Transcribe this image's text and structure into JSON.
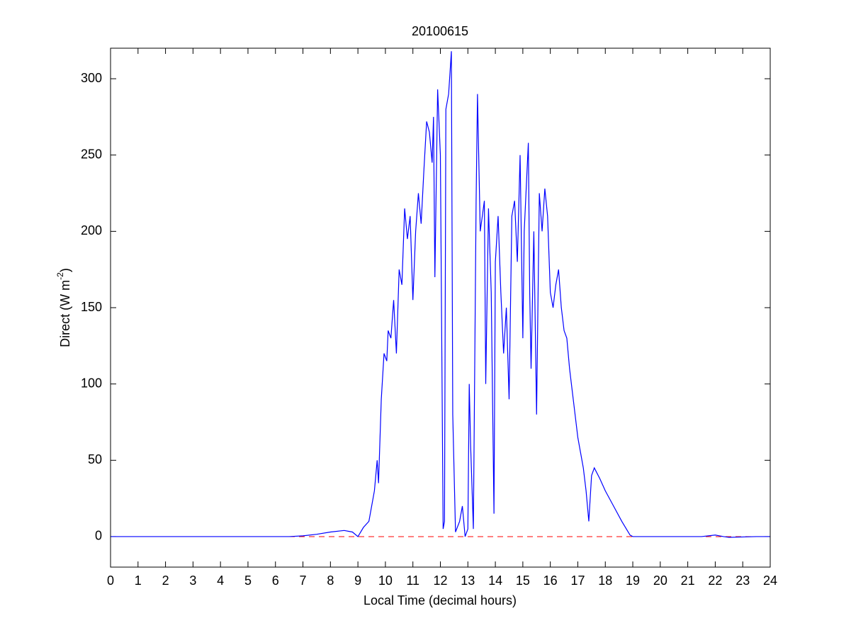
{
  "chart_data": {
    "type": "line",
    "title": "20100615",
    "xlabel": "Local Time (decimal hours)",
    "ylabel": [
      "Direct (W m",
      "-2",
      ")"
    ],
    "xlim": [
      0,
      24
    ],
    "xticks": [
      0,
      1,
      2,
      3,
      4,
      5,
      6,
      7,
      8,
      9,
      10,
      11,
      12,
      13,
      14,
      15,
      16,
      17,
      18,
      19,
      20,
      21,
      22,
      23,
      24
    ],
    "ylim": [
      -20,
      320
    ],
    "yticks": [
      0,
      50,
      100,
      150,
      200,
      250,
      300
    ],
    "reference_line": {
      "value": 0,
      "color": "#ff0000",
      "style": "dashed"
    },
    "series": [
      {
        "color": "#0000ff",
        "x": [
          0,
          6.5,
          7,
          7.5,
          8,
          8.5,
          8.8,
          9.0,
          9.2,
          9.4,
          9.5,
          9.6,
          9.7,
          9.75,
          9.85,
          9.95,
          10.05,
          10.1,
          10.2,
          10.3,
          10.4,
          10.5,
          10.6,
          10.7,
          10.8,
          10.9,
          11.0,
          11.1,
          11.2,
          11.3,
          11.4,
          11.5,
          11.6,
          11.7,
          11.75,
          11.8,
          11.9,
          12.0,
          12.1,
          12.15,
          12.2,
          12.3,
          12.4,
          12.45,
          12.55,
          12.7,
          12.8,
          12.9,
          13.0,
          13.05,
          13.1,
          13.2,
          13.3,
          13.35,
          13.45,
          13.6,
          13.65,
          13.75,
          13.85,
          13.95,
          14.0,
          14.1,
          14.2,
          14.3,
          14.4,
          14.5,
          14.6,
          14.7,
          14.8,
          14.9,
          15.0,
          15.05,
          15.2,
          15.25,
          15.3,
          15.4,
          15.5,
          15.6,
          15.7,
          15.8,
          15.9,
          16.0,
          16.1,
          16.2,
          16.3,
          16.4,
          16.5,
          16.6,
          16.7,
          16.8,
          16.9,
          17.0,
          17.1,
          17.2,
          17.3,
          17.4,
          17.5,
          17.6,
          17.8,
          18.0,
          18.3,
          18.6,
          18.9,
          19.0,
          20,
          21.5,
          22.0,
          22.3,
          22.5,
          23.5,
          24
        ],
        "values": [
          0,
          0,
          0.5,
          1.5,
          3,
          4,
          3,
          0,
          6,
          10,
          20,
          30,
          50,
          35,
          90,
          120,
          115,
          135,
          130,
          155,
          120,
          175,
          165,
          215,
          195,
          210,
          155,
          200,
          225,
          205,
          240,
          272,
          265,
          245,
          275,
          170,
          293,
          250,
          5,
          10,
          280,
          290,
          318,
          80,
          3,
          10,
          20,
          0,
          5,
          100,
          60,
          5,
          220,
          290,
          200,
          220,
          100,
          215,
          160,
          15,
          180,
          210,
          160,
          120,
          150,
          90,
          210,
          220,
          180,
          250,
          130,
          200,
          258,
          160,
          110,
          200,
          80,
          225,
          200,
          228,
          210,
          160,
          150,
          165,
          175,
          150,
          135,
          130,
          110,
          95,
          80,
          65,
          55,
          45,
          30,
          10,
          40,
          45,
          38,
          30,
          20,
          10,
          1,
          0,
          0,
          0,
          1,
          0,
          -0.5,
          0,
          0
        ]
      }
    ]
  }
}
